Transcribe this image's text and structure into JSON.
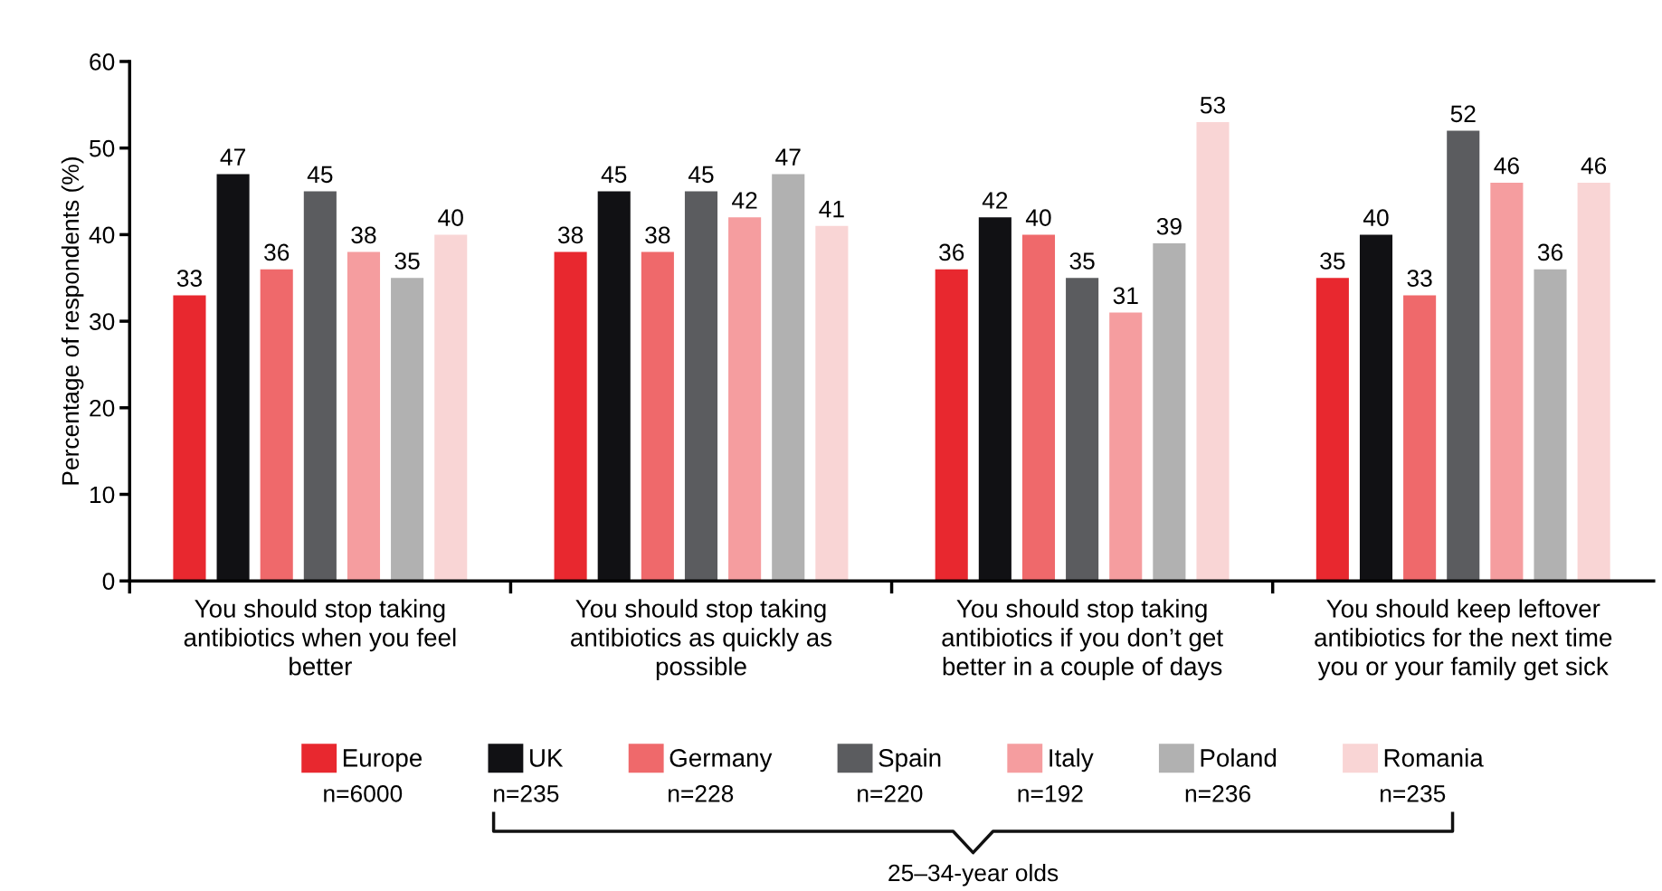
{
  "chart_data": {
    "type": "bar",
    "ylabel": "Percentage of respondents (%)",
    "categories": [
      "You should stop taking antibiotics when you feel better",
      "You should stop taking antibiotics as quickly as possible",
      "You should stop taking antibiotics if you don’t get better in a couple of days",
      "You should keep leftover antibiotics for the next time you or your family get sick"
    ],
    "series": [
      {
        "name": "Europe",
        "color": "#e8282f",
        "values": [
          33,
          38,
          36,
          35
        ]
      },
      {
        "name": "UK",
        "color": "#111114",
        "values": [
          47,
          45,
          42,
          40
        ]
      },
      {
        "name": "Germany",
        "color": "#ef696b",
        "values": [
          36,
          38,
          40,
          33
        ]
      },
      {
        "name": "Spain",
        "color": "#5b5c5f",
        "values": [
          45,
          45,
          35,
          52
        ]
      },
      {
        "name": "Italy",
        "color": "#f59d9f",
        "values": [
          38,
          42,
          31,
          46
        ]
      },
      {
        "name": "Poland",
        "color": "#b1b1b1",
        "values": [
          35,
          47,
          39,
          36
        ]
      },
      {
        "name": "Romania",
        "color": "#f9d5d5",
        "values": [
          40,
          41,
          53,
          46
        ]
      }
    ],
    "annotations": [
      "n=6000",
      "n=235",
      "n=228",
      "n=220",
      "n=192",
      "n=236",
      "n=235",
      "25–34-year olds"
    ],
    "ylim": [
      0,
      60
    ],
    "yticks": [
      0,
      10,
      20,
      30,
      40,
      50,
      60
    ],
    "data_labels": true,
    "legend": "bottom",
    "grid": false
  }
}
